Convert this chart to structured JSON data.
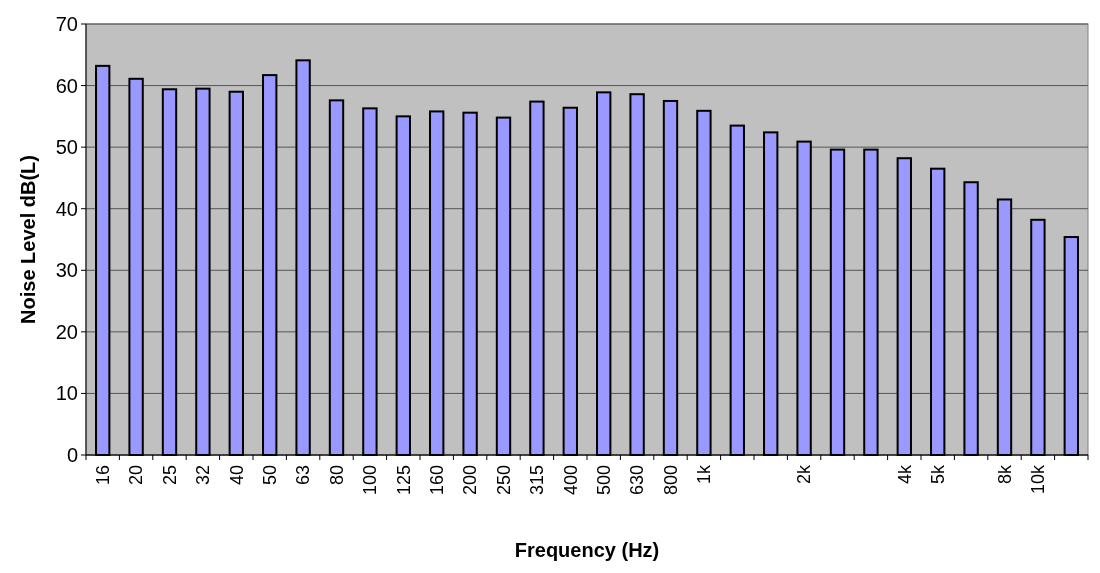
{
  "chart_data": {
    "type": "bar",
    "xlabel": "Frequency (Hz)",
    "ylabel": "Noise Level dB(L)",
    "categories": [
      "16",
      "20",
      "25",
      "32",
      "40",
      "50",
      "63",
      "80",
      "100",
      "125",
      "160",
      "200",
      "250",
      "315",
      "400",
      "500",
      "630",
      "800",
      "1k",
      null,
      null,
      "2k",
      null,
      null,
      "4k",
      "5k",
      null,
      "8k",
      "10k",
      null
    ],
    "values": [
      63.2,
      61.1,
      59.4,
      59.5,
      59.0,
      61.7,
      64.1,
      57.6,
      56.3,
      55.0,
      55.8,
      55.6,
      54.8,
      57.4,
      56.4,
      58.9,
      58.6,
      57.5,
      55.9,
      53.5,
      52.4,
      50.9,
      49.6,
      49.6,
      48.2,
      46.5,
      44.3,
      41.5,
      38.2,
      35.4
    ],
    "color": "#9999ff",
    "ylim": [
      0,
      70
    ],
    "yticks": [
      0,
      10,
      20,
      30,
      40,
      50,
      60,
      70
    ],
    "grid": "y"
  }
}
